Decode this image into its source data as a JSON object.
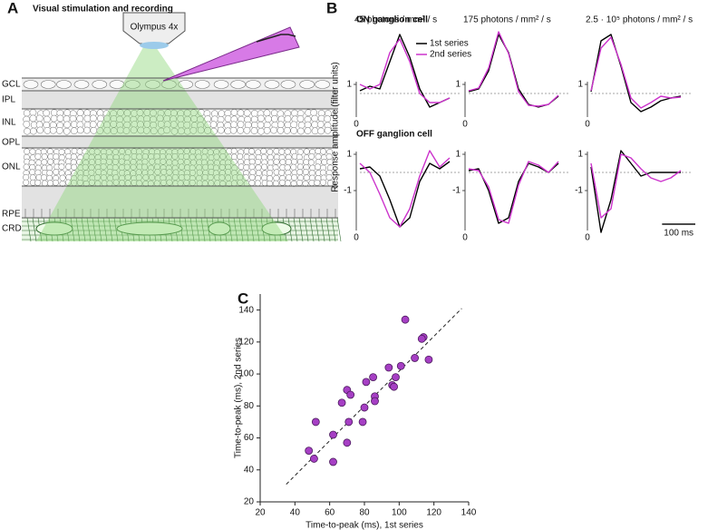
{
  "panel_a": {
    "letter": "A",
    "title": "Visual stimulation and recording",
    "objective": "Olympus 4x",
    "layers": [
      "GCL",
      "IPL",
      "INL",
      "OPL",
      "ONL",
      "RPE",
      "CRD"
    ]
  },
  "panel_b": {
    "letter": "B",
    "ylabel": "Response amplitude (filter units)",
    "row_titles": [
      "ON ganglion cell",
      "OFF ganglion cell"
    ],
    "scale_bar": {
      "value": 100,
      "label": "100 ms"
    }
  },
  "panel_c": {
    "letter": "C"
  },
  "chart_data": [
    {
      "type": "line",
      "subtitle": "45 photons / mm² / s",
      "x": [
        0,
        30,
        60,
        90,
        120,
        150,
        180,
        210,
        240,
        270
      ],
      "xlim": [
        0,
        300
      ],
      "xticks": [
        0
      ],
      "ylim": [
        -3,
        6.8
      ],
      "yticks": [
        1
      ],
      "legend": "upper right",
      "series": [
        {
          "name": "1st series",
          "color": "#000000",
          "values": [
            0.3,
            0.8,
            0.5,
            3.5,
            6.5,
            4,
            0.5,
            -1.5,
            -1.0,
            -0.5
          ]
        },
        {
          "name": "2nd series",
          "color": "#cc33cc",
          "values": [
            1.0,
            0.5,
            1.0,
            4.5,
            6.0,
            3.5,
            0,
            -1,
            -1,
            -0.5
          ]
        }
      ]
    },
    {
      "type": "line",
      "subtitle": "175 photons / mm² / s",
      "x": [
        0,
        30,
        60,
        90,
        120,
        150,
        180,
        210,
        240,
        270
      ],
      "xlim": [
        0,
        300
      ],
      "xticks": [
        0
      ],
      "ylim": [
        -3,
        6.8
      ],
      "yticks": [
        1
      ],
      "series": [
        {
          "color": "#000000",
          "values": [
            0.2,
            0.5,
            2.5,
            6.5,
            4.5,
            0.5,
            -1.2,
            -1.5,
            -1.2,
            -0.3
          ]
        },
        {
          "color": "#cc33cc",
          "values": [
            0.3,
            0.6,
            2.8,
            6.8,
            4.4,
            0.2,
            -1.3,
            -1.4,
            -1.2,
            -0.2
          ]
        }
      ]
    },
    {
      "type": "line",
      "subtitle": "2.5 · 10⁵ photons / mm² / s",
      "x": [
        0,
        30,
        60,
        90,
        120,
        150,
        180,
        210,
        240,
        270
      ],
      "xlim": [
        0,
        300
      ],
      "xticks": [
        0
      ],
      "ylim": [
        -3,
        6.8
      ],
      "yticks": [
        1
      ],
      "series": [
        {
          "color": "#000000",
          "values": [
            0.2,
            5.8,
            6.5,
            3,
            -1,
            -2,
            -1.5,
            -0.8,
            -0.5,
            -0.3
          ]
        },
        {
          "color": "#cc33cc",
          "values": [
            0.3,
            5.0,
            6.2,
            3.2,
            -0.5,
            -1.6,
            -1.0,
            -0.3,
            -0.5,
            -0.4
          ]
        }
      ]
    },
    {
      "type": "line",
      "x": [
        0,
        30,
        60,
        90,
        120,
        150,
        180,
        210,
        240,
        270
      ],
      "xlim": [
        0,
        300
      ],
      "xticks": [
        0
      ],
      "ylim": [
        -3.4,
        2
      ],
      "yticks": [
        1,
        -1
      ],
      "series": [
        {
          "color": "#000000",
          "values": [
            0.2,
            0.3,
            -0.2,
            -1.5,
            -3.0,
            -2.5,
            -0.5,
            0.5,
            0.2,
            0.6
          ]
        },
        {
          "color": "#cc33cc",
          "values": [
            0.5,
            0,
            -1.2,
            -2.5,
            -3.0,
            -2.0,
            -0.2,
            1.2,
            0.3,
            0.8
          ]
        }
      ]
    },
    {
      "type": "line",
      "x": [
        0,
        30,
        60,
        90,
        120,
        150,
        180,
        210,
        240,
        270
      ],
      "xlim": [
        0,
        300
      ],
      "xticks": [
        0
      ],
      "ylim": [
        -3.4,
        2
      ],
      "yticks": [
        1,
        -1
      ],
      "series": [
        {
          "color": "#000000",
          "values": [
            0.1,
            0.2,
            -1.0,
            -2.8,
            -2.5,
            -0.5,
            0.5,
            0.3,
            0.0,
            0.5
          ]
        },
        {
          "color": "#cc33cc",
          "values": [
            0.2,
            0.1,
            -0.8,
            -2.6,
            -2.8,
            -0.7,
            0.6,
            0.4,
            0.0,
            0.6
          ]
        }
      ]
    },
    {
      "type": "line",
      "x": [
        0,
        30,
        60,
        90,
        120,
        150,
        180,
        210,
        240,
        270
      ],
      "xlim": [
        0,
        300
      ],
      "xticks": [
        0
      ],
      "ylim": [
        -3.4,
        2
      ],
      "yticks": [
        1,
        -1
      ],
      "series": [
        {
          "color": "#000000",
          "values": [
            0.3,
            -3.3,
            -1.5,
            1.2,
            0.5,
            -0.2,
            0,
            0,
            0,
            0
          ]
        },
        {
          "color": "#cc33cc",
          "values": [
            0.5,
            -2.5,
            -2.0,
            1.0,
            0.8,
            0.2,
            -0.3,
            -0.5,
            -0.3,
            0.1
          ]
        }
      ]
    },
    {
      "type": "scatter",
      "xlabel": "Time-to-peak (ms), 1st series",
      "ylabel": "Time-to-peak (ms), 2nd series",
      "x": [
        103.5,
        114,
        113,
        109,
        117,
        101,
        94,
        85,
        98,
        96,
        81,
        70,
        72,
        86,
        86,
        80,
        97,
        67,
        71,
        79,
        70,
        52,
        62,
        48,
        51,
        62
      ],
      "y": [
        134,
        123,
        122,
        110,
        109,
        105,
        104,
        98,
        98,
        93,
        95,
        90,
        87,
        86,
        83,
        79,
        92,
        82,
        70,
        70,
        57,
        70,
        62,
        52,
        47,
        45
      ],
      "color": "#a63fc4",
      "xlim": [
        20,
        140
      ],
      "ylim": [
        20,
        150
      ],
      "xticks": [
        20,
        40,
        60,
        80,
        100,
        120,
        140
      ],
      "yticks": [
        20,
        40,
        60,
        80,
        100,
        120,
        140
      ],
      "fit_line": {
        "x": [
          35,
          136
        ],
        "y": [
          31,
          141
        ]
      }
    }
  ]
}
